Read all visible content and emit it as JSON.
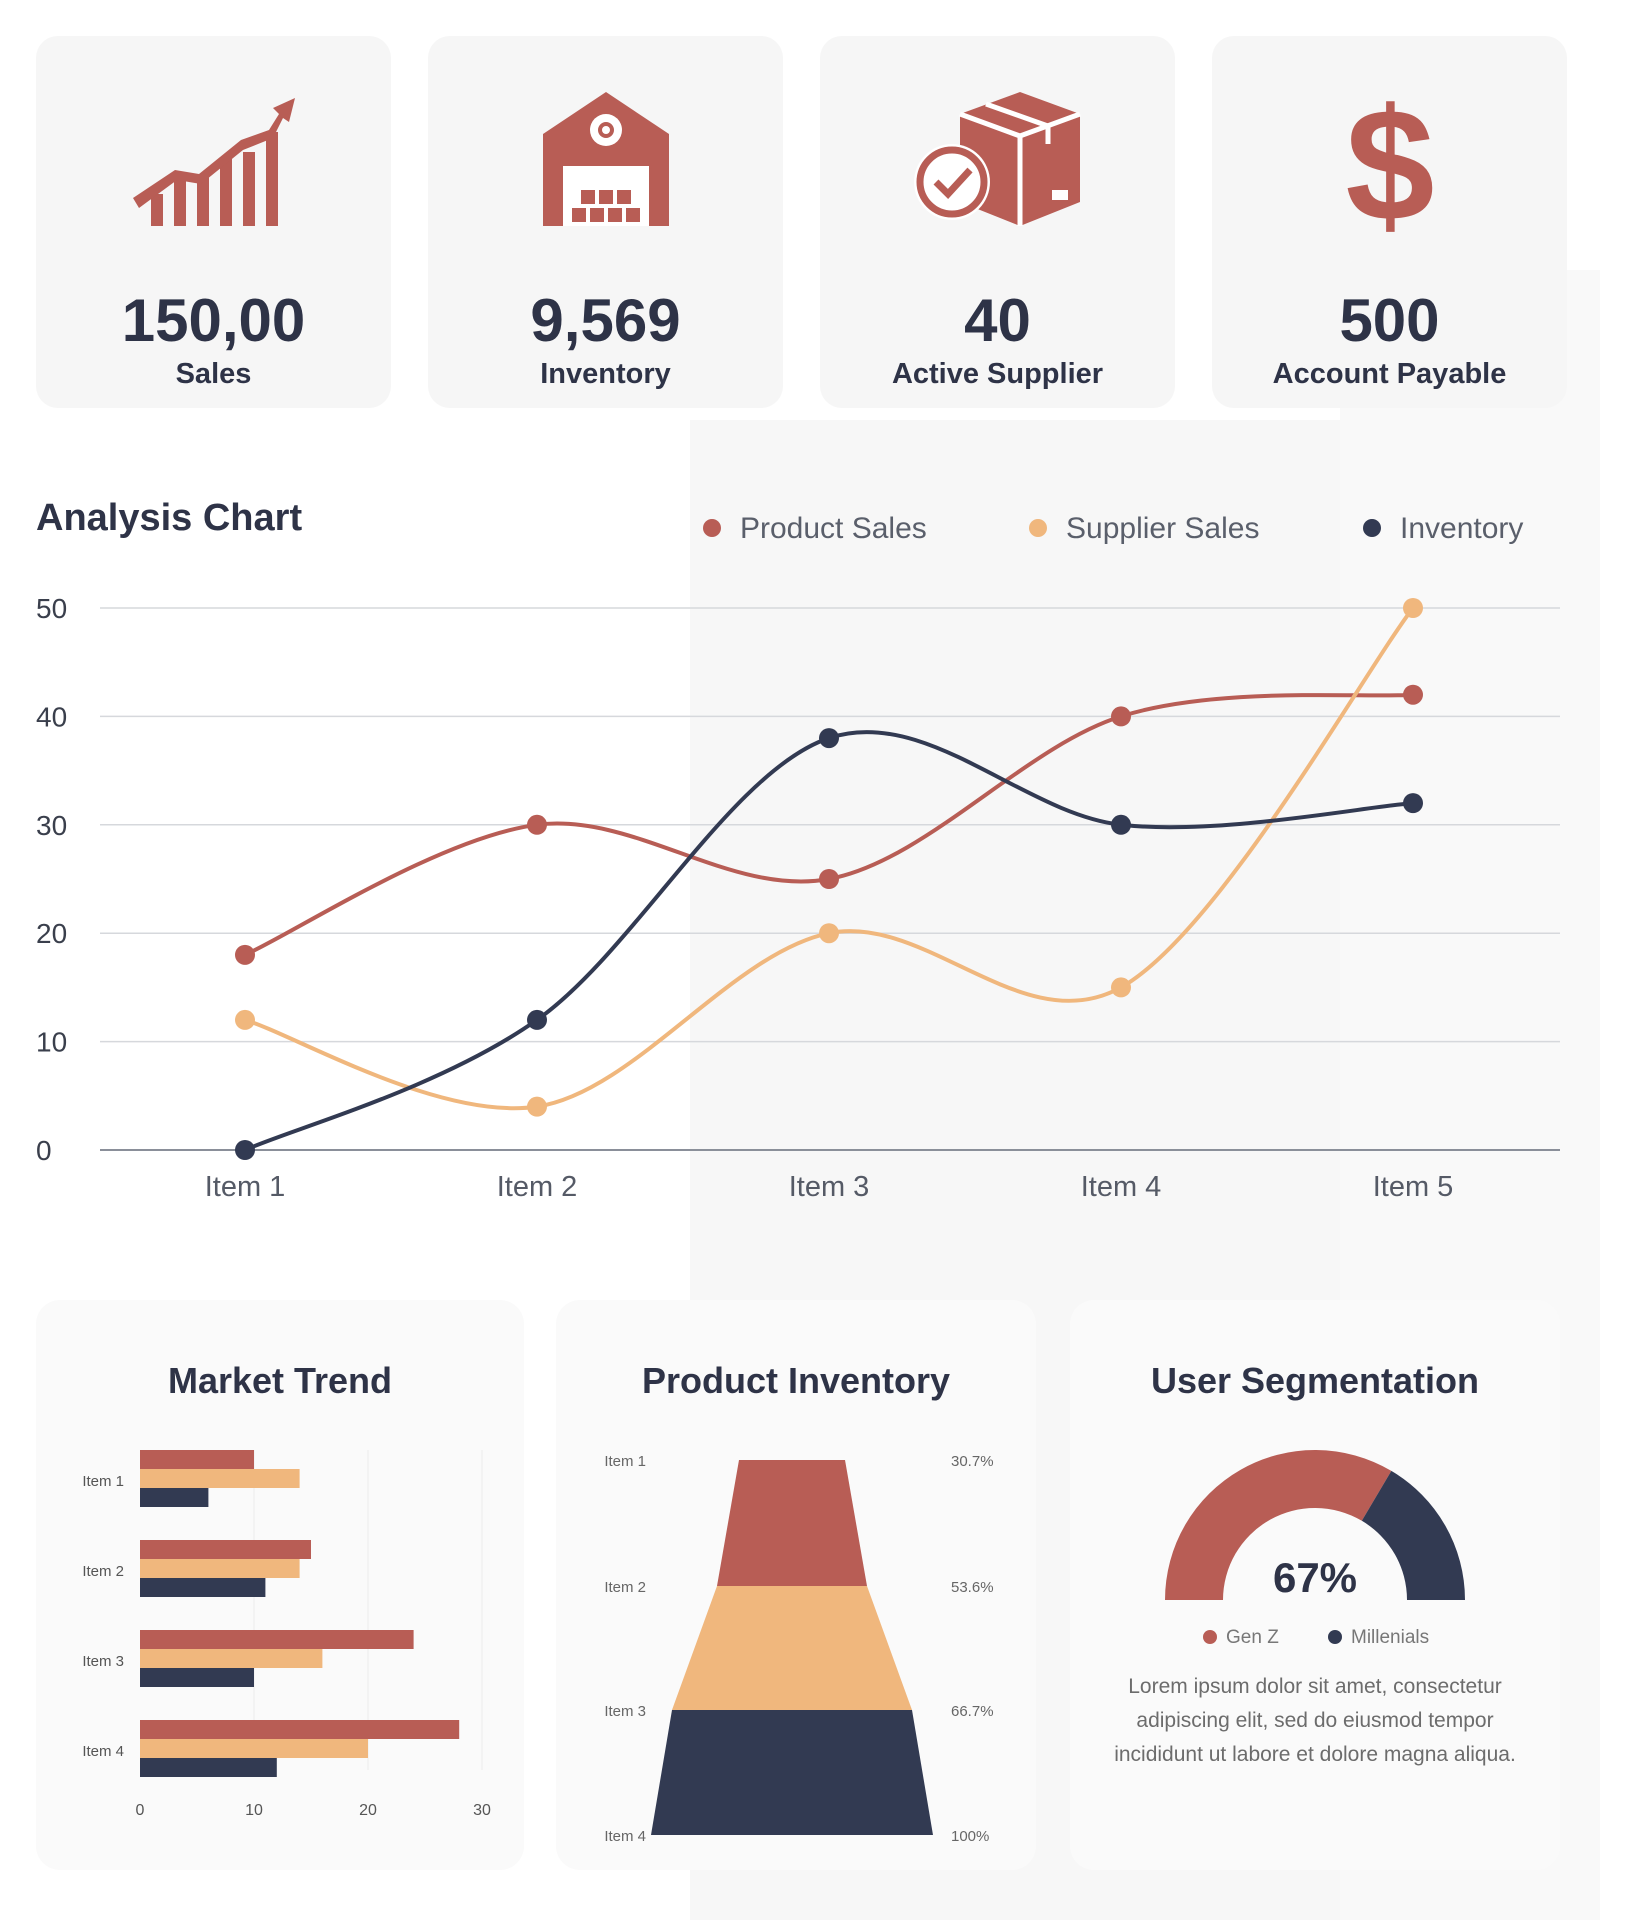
{
  "colors": {
    "product": "#b85d55",
    "supplier": "#f0b77d",
    "inventory": "#323a52",
    "text": "#2e3347"
  },
  "kpis": [
    {
      "value": "150,00",
      "label": "Sales",
      "icon": "growth-chart-icon"
    },
    {
      "value": "9,569",
      "label": "Inventory",
      "icon": "warehouse-icon"
    },
    {
      "value": "40",
      "label": "Active Supplier",
      "icon": "box-check-icon"
    },
    {
      "value": "500",
      "label": "Account Payable",
      "icon": "dollar-icon"
    }
  ],
  "analysis": {
    "title": "Analysis Chart"
  },
  "market": {
    "title": "Market Trend"
  },
  "product_inventory": {
    "title": "Product Inventory"
  },
  "segmentation": {
    "title": "User Segmentation",
    "center_label": "67%",
    "legend": [
      "Gen Z",
      "Millenials"
    ],
    "description": "Lorem ipsum dolor sit amet, consectetur adipiscing elit, sed do eiusmod tempor incididunt ut labore et dolore magna aliqua."
  },
  "chart_data": [
    {
      "type": "line",
      "title": "Analysis Chart",
      "categories": [
        "Item 1",
        "Item 2",
        "Item 3",
        "Item 4",
        "Item 5"
      ],
      "ylim": [
        0,
        50
      ],
      "yticks": [
        0,
        10,
        20,
        30,
        40,
        50
      ],
      "legend_position": "top-right",
      "grid": true,
      "series": [
        {
          "name": "Product Sales",
          "values": [
            18,
            30,
            25,
            40,
            42
          ]
        },
        {
          "name": "Supplier Sales",
          "values": [
            12,
            4,
            20,
            15,
            50
          ]
        },
        {
          "name": "Inventory",
          "values": [
            0,
            12,
            38,
            30,
            32
          ]
        }
      ]
    },
    {
      "type": "bar",
      "title": "Market Trend",
      "orientation": "horizontal",
      "categories": [
        "Item 1",
        "Item 2",
        "Item 3",
        "Item 4"
      ],
      "xlim": [
        0,
        30
      ],
      "xticks": [
        0,
        10,
        20,
        30
      ],
      "series": [
        {
          "values": [
            10,
            15,
            24,
            28
          ]
        },
        {
          "values": [
            14,
            14,
            16,
            20
          ]
        },
        {
          "values": [
            6,
            11,
            10,
            12
          ]
        }
      ]
    },
    {
      "type": "funnel",
      "title": "Product Inventory",
      "categories": [
        "Item 1",
        "Item 2",
        "Item 3",
        "Item 4"
      ],
      "value_labels": [
        "30.7%",
        "53.6%",
        "66.7%",
        "100%"
      ]
    },
    {
      "type": "pie",
      "title": "User Segmentation",
      "style": "semi-donut",
      "center_label": "67%",
      "slices": [
        {
          "name": "Gen Z",
          "value": 67
        },
        {
          "name": "Millenials",
          "value": 33
        }
      ]
    }
  ]
}
